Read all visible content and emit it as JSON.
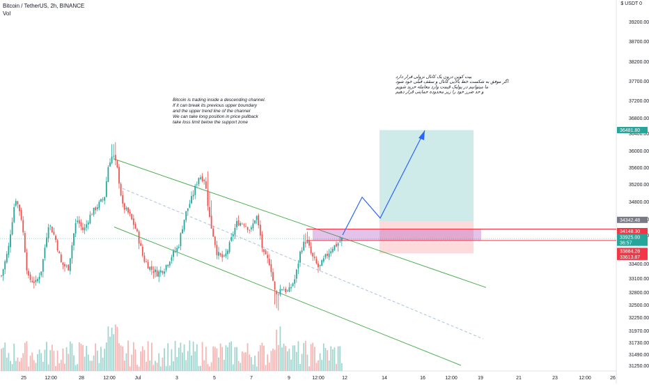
{
  "chart_data": {
    "type": "candlestick",
    "title": "Bitcoin / TetherUS, 2h, BINANCE",
    "volume_label": "Vol",
    "currency_label": "USDT",
    "y_ticks": [
      "39200.00",
      "38700.00",
      "38200.00",
      "37700.00",
      "37200.00",
      "36800.00",
      "36400.00",
      "36000.00",
      "35600.00",
      "35200.00",
      "34800.00",
      "34400.00",
      "34000.00",
      "33400.00",
      "33100.00",
      "32800.00",
      "32500.00",
      "32250.00",
      "31970.00",
      "31730.00",
      "31490.00",
      "31250.00"
    ],
    "x_ticks": [
      "25",
      "12:00",
      "28",
      "12:00",
      "Jul",
      "3",
      "5",
      "7",
      "9",
      "12:00",
      "12",
      "14",
      "16",
      "12:00",
      "19",
      "21",
      "23",
      "12:00",
      "26"
    ],
    "price_tags": [
      {
        "label": "36481.80",
        "color": "#26a69a"
      },
      {
        "label": "34342.48",
        "color": "#787b86"
      },
      {
        "label": "34148.30",
        "color": "#f23645"
      },
      {
        "label": "33925.00",
        "color": "#26a69a"
      },
      {
        "label": "36:57",
        "color": "#26a69a"
      },
      {
        "label": "33884.28",
        "color": "#f23645"
      },
      {
        "label": "33613.87",
        "color": "#f23645"
      }
    ],
    "position": {
      "type": "long",
      "entry": 34342.48,
      "stop": 33613.87,
      "target": 36481.8
    },
    "resistance_levels": [
      34148.3,
      33884.28
    ],
    "annotations": [
      {
        "id": "en",
        "lines": [
          "Bitcoin is trading inside a descending channel.",
          "If it can break its previous upper boundary",
          "and the upper trend line of the channel",
          "We can take long position in price pullback",
          "take loss limit below the support zone"
        ]
      },
      {
        "id": "fa",
        "lines": [
          "بیت کوین درون یک کانال نزولی قرار دارد",
          "اگر موفق به شکست خط بالایی کانال و سقف قبلی خود شود",
          "ما میتوانیم در پولبک قیمت وارد معامله خرید شویم",
          "و حد ضرر خود را زیر محدوده حمایتی قرار دهیم"
        ]
      }
    ],
    "channel": {
      "upper_color": "#4caf50",
      "lower_color": "#4caf50",
      "mid_color": "#a7c1df"
    },
    "colors": {
      "up": "#26a69a",
      "down": "#ef5350",
      "vol_up": "#9fd6cf",
      "vol_down": "#f6b5b2"
    },
    "grid": false
  }
}
